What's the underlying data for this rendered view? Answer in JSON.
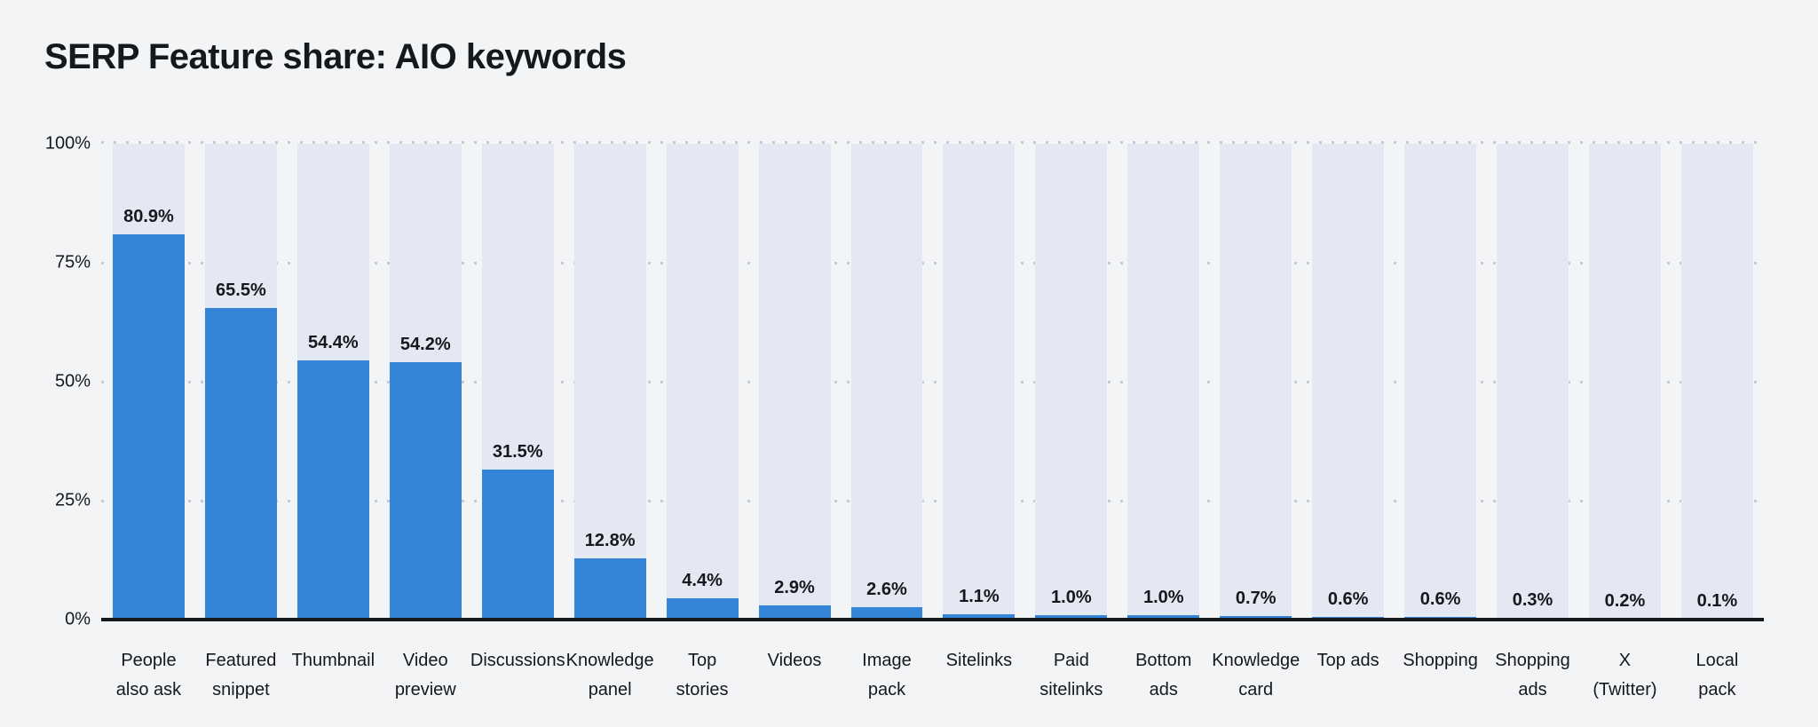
{
  "title": "SERP Feature share: AIO keywords",
  "colors": {
    "background": "#f3f4f6",
    "bar": "#3484d7",
    "bar_track": "#e3e8f2",
    "axis_line": "#15181c",
    "gridline_dots": "#c7cad0",
    "text": "#15181c"
  },
  "chart_data": {
    "type": "bar",
    "title": "SERP Feature share: AIO keywords",
    "xlabel": "",
    "ylabel": "",
    "ylim": [
      0,
      100
    ],
    "grid": "horizontal dotted at 25/50/75/100, solid black baseline at 0",
    "legend": "none",
    "bar_color": "#3484d7",
    "track_color": "#e3e8f2",
    "categories": [
      "People also ask",
      "Featured snippet",
      "Thumbnail",
      "Video preview",
      "Discussions",
      "Knowledge panel",
      "Top stories",
      "Videos",
      "Image pack",
      "Sitelinks",
      "Paid sitelinks",
      "Bottom ads",
      "Knowledge card",
      "Top ads",
      "Shopping",
      "Shopping ads",
      "X (Twitter)",
      "Local pack"
    ],
    "category_display": [
      "People\nalso ask",
      "Featured\nsnippet",
      "Thumbnail",
      "Video\npreview",
      "Discussions",
      "Knowledge\npanel",
      "Top\nstories",
      "Videos",
      "Image\npack",
      "Sitelinks",
      "Paid\nsitelinks",
      "Bottom\nads",
      "Knowledge\ncard",
      "Top ads",
      "Shopping",
      "Shopping\nads",
      "X\n(Twitter)",
      "Local\npack"
    ],
    "values": [
      80.9,
      65.5,
      54.4,
      54.2,
      31.5,
      12.8,
      4.4,
      2.9,
      2.6,
      1.1,
      1.0,
      1.0,
      0.7,
      0.6,
      0.6,
      0.3,
      0.2,
      0.1
    ],
    "value_labels": [
      "80.9%",
      "65.5%",
      "54.4%",
      "54.2%",
      "31.5%",
      "12.8%",
      "4.4%",
      "2.9%",
      "2.6%",
      "1.1%",
      "1.0%",
      "1.0%",
      "0.7%",
      "0.6%",
      "0.6%",
      "0.3%",
      "0.2%",
      "0.1%"
    ],
    "y_ticks": [
      {
        "value": 0,
        "label": "0%"
      },
      {
        "value": 25,
        "label": "25%"
      },
      {
        "value": 50,
        "label": "50%"
      },
      {
        "value": 75,
        "label": "75%"
      },
      {
        "value": 100,
        "label": "100%"
      }
    ]
  }
}
